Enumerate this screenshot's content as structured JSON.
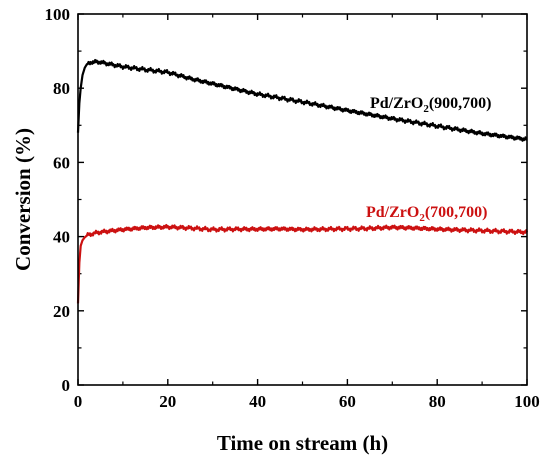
{
  "chart_data": {
    "type": "line",
    "xlabel": "Time on stream (h)",
    "ylabel": "Conversion (%)",
    "xlim": [
      0,
      100
    ],
    "ylim": [
      0,
      100
    ],
    "x_ticks": [
      "0",
      "20",
      "40",
      "60",
      "80",
      "100"
    ],
    "y_ticks": [
      "0",
      "20",
      "40",
      "60",
      "80",
      "100"
    ],
    "grid": false,
    "series": [
      {
        "name": "Pd/ZrO2(900,700)",
        "label_main": "Pd/ZrO",
        "label_sub": "2",
        "label_tail": "(900,700)",
        "color": "#000000",
        "x": [
          0.0,
          0.3,
          0.6,
          1.0,
          1.5,
          2.0,
          3.0,
          4.0,
          5.0,
          7.0,
          10.0,
          15.0,
          20.0,
          25.0,
          30.0,
          40.0,
          50.0,
          60.0,
          70.0,
          80.0,
          90.0,
          100.0
        ],
        "y": [
          68.0,
          76.0,
          80.0,
          83.5,
          85.5,
          86.5,
          87.0,
          87.1,
          87.0,
          86.5,
          85.8,
          85.0,
          84.3,
          82.6,
          81.2,
          78.4,
          76.3,
          74.0,
          71.8,
          69.8,
          67.8,
          66.2
        ]
      },
      {
        "name": "Pd/ZrO2(700,700)",
        "label_main": "Pd/ZrO",
        "label_sub": "2",
        "label_tail": "(700,700)",
        "color": "#cc1111",
        "x": [
          0.0,
          0.3,
          0.6,
          1.0,
          1.5,
          2.0,
          3.0,
          4.0,
          5.0,
          7.0,
          10.0,
          15.0,
          20.0,
          25.0,
          30.0,
          35.0,
          40.0,
          45.0,
          50.0,
          55.0,
          60.0,
          65.0,
          70.0,
          75.0,
          80.0,
          85.0,
          90.0,
          95.0,
          100.0
        ],
        "y": [
          22.0,
          33.0,
          37.5,
          39.0,
          39.8,
          40.3,
          40.7,
          41.0,
          41.2,
          41.5,
          41.9,
          42.4,
          42.6,
          42.3,
          41.9,
          42.0,
          42.0,
          42.1,
          41.9,
          42.0,
          42.1,
          42.2,
          42.5,
          42.3,
          42.0,
          41.8,
          41.6,
          41.4,
          41.2
        ]
      }
    ]
  }
}
